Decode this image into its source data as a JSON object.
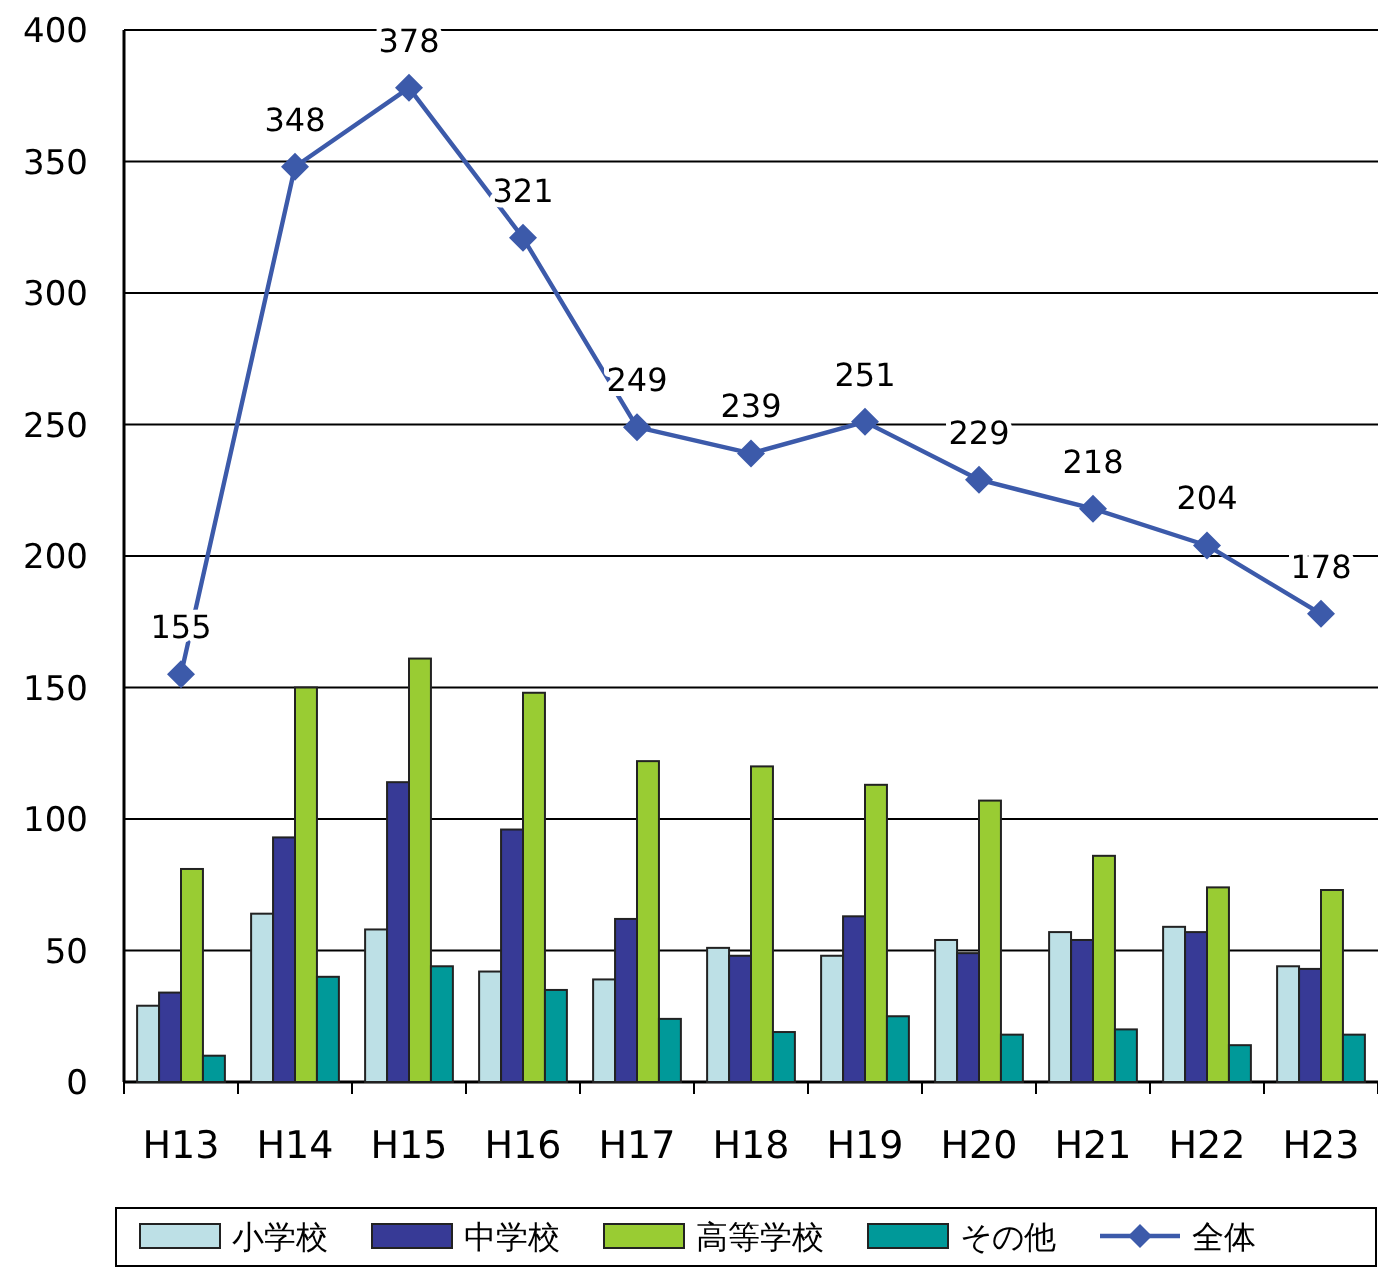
{
  "chart_data": {
    "type": "bar",
    "categories": [
      "H13",
      "H14",
      "H15",
      "H16",
      "H17",
      "H18",
      "H19",
      "H20",
      "H21",
      "H22",
      "H23"
    ],
    "series": [
      {
        "name": "小学校",
        "color": "#bde0e6",
        "values": [
          29,
          64,
          58,
          42,
          39,
          51,
          48,
          54,
          57,
          59,
          44
        ]
      },
      {
        "name": "中学校",
        "color": "#373a96",
        "values": [
          34,
          93,
          114,
          96,
          62,
          48,
          63,
          49,
          54,
          57,
          43
        ]
      },
      {
        "name": "高等学校",
        "color": "#99cc33",
        "values": [
          81,
          150,
          161,
          148,
          122,
          120,
          113,
          107,
          86,
          74,
          73
        ]
      },
      {
        "name": "その他",
        "color": "#009999",
        "values": [
          10,
          40,
          44,
          35,
          24,
          19,
          25,
          18,
          20,
          14,
          18
        ]
      },
      {
        "name": "全体",
        "type": "line",
        "color": "#3c5aaa",
        "marker": "diamond",
        "values": [
          155,
          348,
          378,
          321,
          249,
          239,
          251,
          229,
          218,
          204,
          178
        ],
        "value_labels": [
          "155",
          "348",
          "378",
          "321",
          "249",
          "239",
          "251",
          "229",
          "218",
          "204",
          "178"
        ]
      }
    ],
    "ylim": [
      0,
      400
    ],
    "yticks": [
      0,
      50,
      100,
      150,
      200,
      250,
      300,
      350,
      400
    ],
    "grid": "y",
    "legend": "bottom"
  }
}
